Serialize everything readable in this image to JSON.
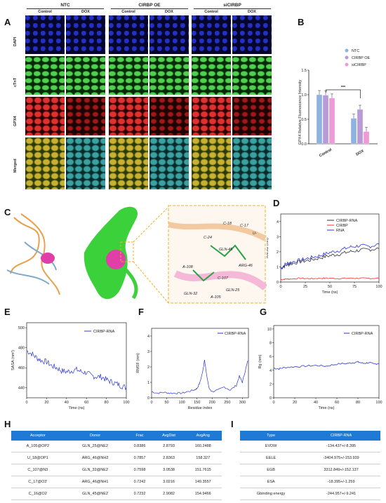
{
  "panels": {
    "a": "A",
    "b": "B",
    "c": "C",
    "d": "D",
    "e": "E",
    "f": "F",
    "g": "G",
    "h": "H",
    "i": "I"
  },
  "panel_a": {
    "groups": [
      "NTC",
      "CIRBP OE",
      "siCIRBP"
    ],
    "conditions": [
      "Control",
      "DOX",
      "Control",
      "DOX",
      "Control",
      "DOX"
    ],
    "rows": [
      "DAPI",
      "cTnT",
      "GPX4",
      "Merged"
    ]
  },
  "chart_b": {
    "type": "bar",
    "categories": [
      "Control",
      "DOX"
    ],
    "series": [
      {
        "name": "NTC",
        "values": [
          1.0,
          0.52
        ],
        "color": "#8fb3e0"
      },
      {
        "name": "CIRBP OE",
        "values": [
          0.99,
          0.7
        ],
        "color": "#b79ad6"
      },
      {
        "name": "siCIRBP",
        "values": [
          0.93,
          0.25
        ],
        "color": "#ee9ad6"
      }
    ],
    "ylabel": "GPX4 Relative Fluorescence Intensity",
    "yticks": [
      "0.0",
      "0.5",
      "1.0",
      "1.5"
    ],
    "ylim": [
      0,
      1.5
    ],
    "significance": "***"
  },
  "panel_c": {
    "labels": [
      "C-18",
      "C-17",
      "U-",
      "C-24",
      "GLN-45",
      "ARG-46",
      "A-108",
      "C-107",
      "GLN-25",
      "GLN-32",
      "A-105"
    ]
  },
  "chart_d": {
    "type": "line",
    "legend": [
      "CIRBP-RNA",
      "CIRBP",
      "RNA"
    ],
    "colors": [
      "#333333",
      "#e8322e",
      "#2a36d8"
    ],
    "ylabel": "RMSD (nm)",
    "xlabel": "Time (ns)",
    "xticks": [
      "0",
      "25",
      "50",
      "75",
      "100"
    ],
    "yticks": [
      "0",
      "1",
      "2",
      "3",
      "4"
    ],
    "xlim": [
      0,
      100
    ],
    "ylim": [
      0,
      4.5
    ],
    "series": [
      {
        "name": "CIRBP-RNA",
        "x": [
          0,
          5,
          10,
          20,
          30,
          40,
          50,
          60,
          70,
          80,
          90,
          100
        ],
        "y": [
          0.9,
          1.1,
          1.2,
          1.35,
          1.45,
          1.6,
          1.75,
          1.85,
          2.0,
          2.1,
          2.15,
          2.2
        ]
      },
      {
        "name": "CIRBP",
        "x": [
          0,
          5,
          10,
          20,
          30,
          40,
          50,
          60,
          70,
          80,
          90,
          100
        ],
        "y": [
          0.15,
          0.2,
          0.2,
          0.25,
          0.22,
          0.25,
          0.25,
          0.23,
          0.25,
          0.25,
          0.24,
          0.25
        ]
      },
      {
        "name": "RNA",
        "x": [
          0,
          5,
          10,
          20,
          30,
          40,
          50,
          60,
          70,
          80,
          90,
          100
        ],
        "y": [
          0.9,
          1.2,
          1.3,
          1.45,
          1.6,
          1.75,
          1.95,
          2.1,
          2.3,
          2.4,
          2.35,
          2.5
        ]
      }
    ]
  },
  "chart_e": {
    "type": "line",
    "legend": "CIRBP-RNA",
    "ylabel": "SASA (nm²)",
    "xlabel": "Time (ns)",
    "xticks": [
      "0",
      "20",
      "40",
      "60",
      "80",
      "100"
    ],
    "yticks": [
      "440",
      "460",
      "480",
      "500"
    ],
    "xlim": [
      0,
      100
    ],
    "ylim": [
      430,
      505
    ],
    "x": [
      0,
      5,
      10,
      15,
      20,
      25,
      30,
      35,
      40,
      45,
      50,
      55,
      60,
      65,
      70,
      75,
      80,
      85,
      90,
      95,
      100
    ],
    "y": [
      477,
      474,
      470,
      467,
      466,
      462,
      460,
      457,
      456,
      457,
      458,
      456,
      455,
      452,
      451,
      451,
      448,
      446,
      444,
      442,
      440
    ]
  },
  "chart_f": {
    "type": "line",
    "legend": "CIRBP-RNA",
    "ylabel": "RMSF (nm)",
    "xlabel": "Residue index",
    "xticks": [
      "0",
      "50",
      "100",
      "150",
      "200",
      "250",
      "300"
    ],
    "yticks": [
      "0",
      "1",
      "2",
      "3",
      "4"
    ],
    "xlim": [
      0,
      320
    ],
    "ylim": [
      0,
      4.5
    ],
    "x": [
      0,
      20,
      40,
      60,
      80,
      100,
      120,
      140,
      150,
      160,
      170,
      175,
      180,
      190,
      200,
      220,
      240,
      260,
      280,
      290,
      300,
      310,
      318
    ],
    "y": [
      0.4,
      0.3,
      0.35,
      0.3,
      0.3,
      0.3,
      0.4,
      0.5,
      0.6,
      1.0,
      1.8,
      2.5,
      1.7,
      0.6,
      0.4,
      0.5,
      0.7,
      0.5,
      0.8,
      1.4,
      1.0,
      1.8,
      2.4
    ]
  },
  "chart_g": {
    "type": "line",
    "legend": "CIRBP-RNA",
    "ylabel": "Rg (nm)",
    "xlabel": "Time (ns)",
    "xticks": [
      "0",
      "20",
      "40",
      "60",
      "80",
      "100"
    ],
    "yticks": [
      "0",
      "2",
      "4",
      "6",
      "8",
      "10"
    ],
    "xlim": [
      0,
      100
    ],
    "ylim": [
      0,
      10.5
    ],
    "x": [
      0,
      5,
      10,
      20,
      30,
      40,
      50,
      60,
      70,
      75,
      80,
      85,
      90,
      95,
      100
    ],
    "y": [
      4.3,
      4.2,
      4.4,
      4.5,
      4.6,
      4.7,
      4.6,
      4.9,
      5.0,
      5.1,
      5.2,
      5.0,
      5.1,
      4.9,
      5.0
    ]
  },
  "table_h": {
    "headers": [
      "Acceptor",
      "Donor",
      "Frac",
      "AvgDist",
      "AvgAng"
    ],
    "rows": [
      [
        "A_105@OP2",
        "GLN_25@NE2",
        "0.8386",
        "2.8793",
        "160.2488"
      ],
      [
        "U_18@OP1",
        "ARG_46@NH2",
        "0.7857",
        "2.8363",
        "158.327"
      ],
      [
        "C_107@N3",
        "GLN_32@NE2",
        "0.7598",
        "3.0538",
        "151.7615"
      ],
      [
        "C_17@O3'",
        "ARG_46@NH1",
        "0.7242",
        "3.0216",
        "149.3557"
      ],
      [
        "C_16@O2",
        "GLN_45@NE2",
        "0.7232",
        "2.9082",
        "154.9466"
      ]
    ]
  },
  "table_i": {
    "headers": [
      "Type",
      "CIRBP-RNA"
    ],
    "rows": [
      [
        "EVDW",
        "-134.437+/-8.395"
      ],
      [
        "EELE",
        "-3404.975+/-153.939"
      ],
      [
        "EGB",
        "3312.849+/-152.137"
      ],
      [
        "ESA",
        "-18.395+/-1.259"
      ],
      [
        "Gbinding energy",
        "-244.957+/-9.241"
      ]
    ]
  }
}
